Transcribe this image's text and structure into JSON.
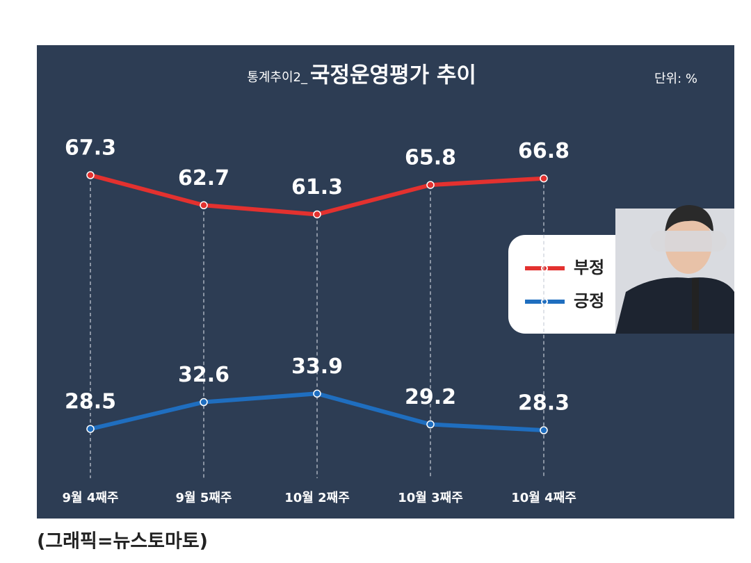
{
  "chart_data": {
    "type": "line",
    "subtitle": "통계추이2_",
    "title": "국정운영평가 추이",
    "unit_label": "단위: %",
    "caption": "(그래픽=뉴스토마토)",
    "categories": [
      "9월 4째주",
      "9월 5째주",
      "10월 2째주",
      "10월 3째주",
      "10월 4째주"
    ],
    "series": [
      {
        "name": "부정",
        "color": "#e3312f",
        "values": [
          67.3,
          62.7,
          61.3,
          65.8,
          66.8
        ]
      },
      {
        "name": "긍정",
        "color": "#1f6ebf",
        "values": [
          28.5,
          32.6,
          33.9,
          29.2,
          28.3
        ]
      }
    ]
  }
}
